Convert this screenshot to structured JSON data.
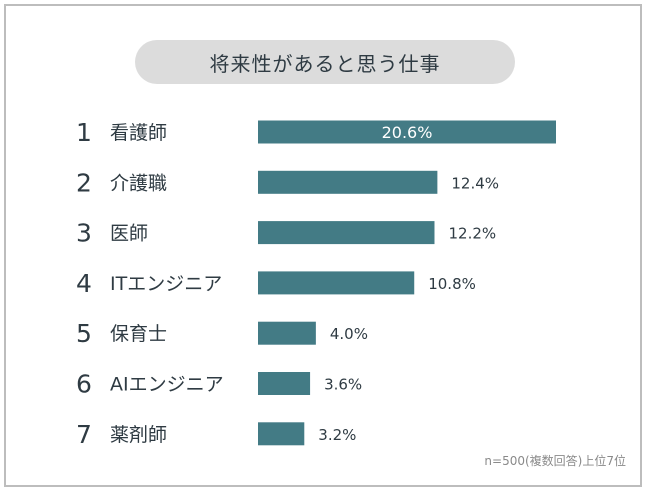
{
  "chart_data": {
    "type": "bar",
    "orientation": "horizontal",
    "title": "将来性があると思う仕事",
    "ranks": [
      "1",
      "2",
      "3",
      "4",
      "5",
      "6",
      "7"
    ],
    "categories": [
      "看護師",
      "介護職",
      "医師",
      "ITエンジニア",
      "保育士",
      "AIエンジニア",
      "薬剤師"
    ],
    "values": [
      20.6,
      12.4,
      12.2,
      10.8,
      4.0,
      3.6,
      3.2
    ],
    "value_labels": [
      "20.6%",
      "12.4%",
      "12.2%",
      "10.8%",
      "4.0%",
      "3.6%",
      "3.2%"
    ],
    "xlim": [
      0,
      20.6
    ],
    "grid": false,
    "colors": {
      "bar": "#437b85",
      "inside_label": "#ffffff",
      "outside_label": "#2f3b43",
      "text": "#2f3b43"
    },
    "note": "n=500(複数回答)上位7位"
  }
}
